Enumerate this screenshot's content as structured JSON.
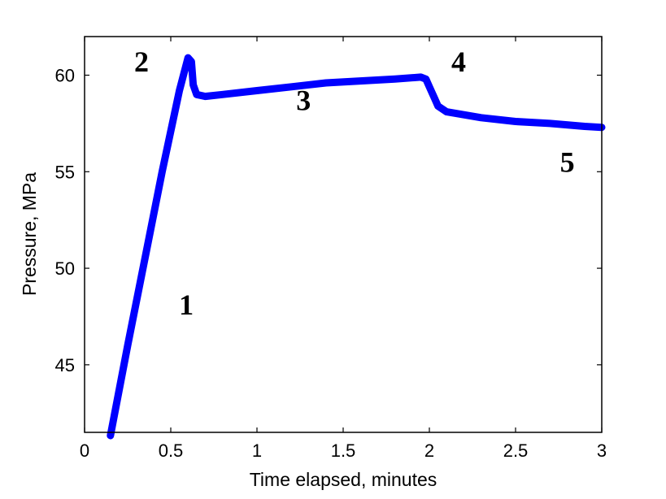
{
  "chart_data": {
    "type": "line",
    "title": "",
    "xlabel": "Time elapsed, minutes",
    "ylabel": "Pressure, MPa",
    "xlim": [
      0,
      3
    ],
    "ylim": [
      41.5,
      62
    ],
    "xticks": [
      0,
      0.5,
      1,
      1.5,
      2,
      2.5,
      3
    ],
    "xtick_labels": [
      "0",
      "0.5",
      "1",
      "1.5",
      "2",
      "2.5",
      "3"
    ],
    "yticks": [
      45,
      50,
      55,
      60
    ],
    "ytick_labels": [
      "45",
      "50",
      "55",
      "60"
    ],
    "grid": false,
    "legend": "none",
    "line_color": "#0000ff",
    "series": [
      {
        "x": [
          0.15,
          0.25,
          0.35,
          0.45,
          0.55,
          0.6,
          0.62,
          0.63,
          0.65,
          0.7,
          0.8,
          1.0,
          1.2,
          1.4,
          1.6,
          1.8,
          1.95,
          1.98,
          2.0,
          2.03,
          2.05,
          2.1,
          2.3,
          2.5,
          2.7,
          2.9,
          3.0
        ],
        "y": [
          41.2,
          46.0,
          50.5,
          55.0,
          59.2,
          60.9,
          60.7,
          59.5,
          59.0,
          58.9,
          59.0,
          59.2,
          59.4,
          59.6,
          59.7,
          59.8,
          59.9,
          59.8,
          59.4,
          58.8,
          58.4,
          58.1,
          57.8,
          57.6,
          57.5,
          57.35,
          57.3
        ]
      }
    ],
    "annotations": [
      {
        "text": "1",
        "x": 0.59,
        "y": 47.6
      },
      {
        "text": "2",
        "x": 0.33,
        "y": 60.2
      },
      {
        "text": "3",
        "x": 1.27,
        "y": 58.2
      },
      {
        "text": "4",
        "x": 2.17,
        "y": 60.2
      },
      {
        "text": "5",
        "x": 2.8,
        "y": 55.0
      }
    ]
  }
}
